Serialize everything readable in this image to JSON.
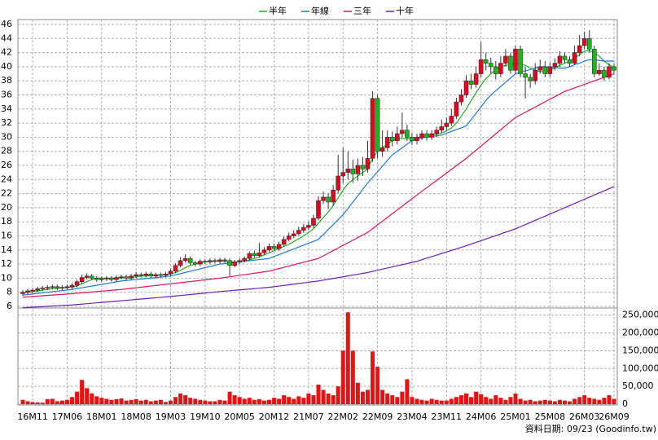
{
  "chart_data": {
    "type": "candlestick",
    "categories": [
      null,
      null,
      "16M11",
      null,
      null,
      null,
      null,
      null,
      null,
      "17M06",
      null,
      null,
      null,
      null,
      null,
      null,
      "18M01",
      null,
      null,
      null,
      null,
      null,
      null,
      "18M08",
      null,
      null,
      null,
      null,
      null,
      null,
      "19M03",
      null,
      null,
      null,
      null,
      null,
      null,
      "19M10",
      null,
      null,
      null,
      null,
      null,
      null,
      "20M05",
      null,
      null,
      null,
      null,
      null,
      null,
      "20M12",
      null,
      null,
      null,
      null,
      null,
      null,
      "21M07",
      null,
      null,
      null,
      null,
      null,
      null,
      "22M02",
      null,
      null,
      null,
      null,
      null,
      null,
      "22M09",
      null,
      null,
      null,
      null,
      null,
      null,
      "23M04",
      null,
      null,
      null,
      null,
      null,
      null,
      "23M11",
      null,
      null,
      null,
      null,
      null,
      null,
      "24M06",
      null,
      null,
      null,
      null,
      null,
      null,
      "25M01",
      null,
      null,
      null,
      null,
      null,
      null,
      "25M08",
      null,
      null,
      null,
      null,
      null,
      null,
      "26M03",
      null,
      null,
      null,
      null,
      null,
      "26M09"
    ],
    "open": [
      7.8,
      8.0,
      8.2,
      8.3,
      8.5,
      8.6,
      8.7,
      8.8,
      8.6,
      8.7,
      8.8,
      9.0,
      9.5,
      10.1,
      10.3,
      10.0,
      9.8,
      9.9,
      10.0,
      9.8,
      10.1,
      10.2,
      10.0,
      10.3,
      10.5,
      10.4,
      10.6,
      10.3,
      10.5,
      10.4,
      10.6,
      11.0,
      11.8,
      12.5,
      12.8,
      12.2,
      12.0,
      12.4,
      12.3,
      12.5,
      12.4,
      12.6,
      12.5,
      11.8,
      12.3,
      12.5,
      12.8,
      13.5,
      13.2,
      13.6,
      14.0,
      14.5,
      14.2,
      14.8,
      15.5,
      16.0,
      16.3,
      16.8,
      17.2,
      17.5,
      18.5,
      21.0,
      21.5,
      20.8,
      22.5,
      24.5,
      25.0,
      25.5,
      24.8,
      26.0,
      25.5,
      27.0,
      35.5,
      28.0,
      28.5,
      30.0,
      29.5,
      30.5,
      31.0,
      30.0,
      29.5,
      30.0,
      30.5,
      30.0,
      30.5,
      31.0,
      31.5,
      32.0,
      33.0,
      35.0,
      36.0,
      38.0,
      37.5,
      39.0,
      41.0,
      40.5,
      40.0,
      39.0,
      40.5,
      41.5,
      39.5,
      42.5,
      39.0,
      38.5,
      38.0,
      39.5,
      40.0,
      39.0,
      40.0,
      40.5,
      41.5,
      41.0,
      40.5,
      42.0,
      43.0,
      44.0,
      42.5,
      39.0,
      39.5,
      38.5,
      40.0
    ],
    "high": [
      8.3,
      8.5,
      8.6,
      8.8,
      8.9,
      9.0,
      9.1,
      9.1,
      9.0,
      9.1,
      9.3,
      9.8,
      10.5,
      10.7,
      10.6,
      10.3,
      10.2,
      10.3,
      10.3,
      10.4,
      10.5,
      10.5,
      10.6,
      10.9,
      10.8,
      10.9,
      10.9,
      10.8,
      10.8,
      10.9,
      11.3,
      12.1,
      13.0,
      13.4,
      13.1,
      12.5,
      12.7,
      12.7,
      12.8,
      12.8,
      12.9,
      12.9,
      12.8,
      12.6,
      12.8,
      13.1,
      13.8,
      13.9,
      15.0,
      14.4,
      14.9,
      14.9,
      15.2,
      15.9,
      16.5,
      16.8,
      17.3,
      17.7,
      18.0,
      19.0,
      21.6,
      22.3,
      22.0,
      23.2,
      27.5,
      28.5,
      28.0,
      26.8,
      27.0,
      27.2,
      29.5,
      36.5,
      36.0,
      31.0,
      31.0,
      30.8,
      31.5,
      33.5,
      31.8,
      30.6,
      30.5,
      31.0,
      31.0,
      31.0,
      31.5,
      32.5,
      32.8,
      34.0,
      35.6,
      36.8,
      38.8,
      39.0,
      40.0,
      43.5,
      42.0,
      41.3,
      40.8,
      41.5,
      42.5,
      42.0,
      43.0,
      43.0,
      40.0,
      39.0,
      40.5,
      41.0,
      40.8,
      40.6,
      41.2,
      42.2,
      42.0,
      41.5,
      43.0,
      44.5,
      45.0,
      45.2,
      43.0,
      40.5,
      40.0,
      40.5,
      40.5
    ],
    "low": [
      7.5,
      7.7,
      7.9,
      8.0,
      8.2,
      8.3,
      8.4,
      8.3,
      8.3,
      8.4,
      8.5,
      8.7,
      9.2,
      9.8,
      9.7,
      9.5,
      9.5,
      9.6,
      9.5,
      9.5,
      9.8,
      9.7,
      9.7,
      10.0,
      10.1,
      10.1,
      10.0,
      10.0,
      10.1,
      10.1,
      10.3,
      10.7,
      11.5,
      12.2,
      11.9,
      11.7,
      11.7,
      12.0,
      12.0,
      12.1,
      12.1,
      12.2,
      10.3,
      11.5,
      12.0,
      12.2,
      12.5,
      12.9,
      12.9,
      13.3,
      13.7,
      13.9,
      13.9,
      14.5,
      15.2,
      15.7,
      16.0,
      16.4,
      16.8,
      17.1,
      18.2,
      20.5,
      19.8,
      20.3,
      22.0,
      23.5,
      24.0,
      23.5,
      23.8,
      24.5,
      25.0,
      26.5,
      27.0,
      27.2,
      28.0,
      28.7,
      29.0,
      30.0,
      29.5,
      28.9,
      29.0,
      29.6,
      29.5,
      29.6,
      30.0,
      30.6,
      31.0,
      31.6,
      32.6,
      34.5,
      35.6,
      36.8,
      37.0,
      38.5,
      39.5,
      39.0,
      38.2,
      38.5,
      40.0,
      39.0,
      39.0,
      38.5,
      35.5,
      37.0,
      37.5,
      39.0,
      38.5,
      38.6,
      39.5,
      40.0,
      40.5,
      40.0,
      40.2,
      41.5,
      42.5,
      42.0,
      38.5,
      38.7,
      38.0,
      38.2,
      39.0
    ],
    "close": [
      8.0,
      8.2,
      8.3,
      8.5,
      8.6,
      8.7,
      8.8,
      8.6,
      8.7,
      8.8,
      9.0,
      9.5,
      10.1,
      10.3,
      10.0,
      9.8,
      9.9,
      10.0,
      9.8,
      10.1,
      10.2,
      10.0,
      10.3,
      10.5,
      10.4,
      10.6,
      10.3,
      10.5,
      10.4,
      10.6,
      11.0,
      11.8,
      12.5,
      12.8,
      12.2,
      12.0,
      12.4,
      12.3,
      12.5,
      12.4,
      12.6,
      12.5,
      11.8,
      12.3,
      12.5,
      12.8,
      13.5,
      13.2,
      13.6,
      14.0,
      14.5,
      14.2,
      14.8,
      15.5,
      16.0,
      16.3,
      16.8,
      17.2,
      17.5,
      18.5,
      21.0,
      21.5,
      20.8,
      22.5,
      24.5,
      25.0,
      25.5,
      24.8,
      26.0,
      25.5,
      27.0,
      35.5,
      28.0,
      28.5,
      30.0,
      29.5,
      30.5,
      31.0,
      30.0,
      29.5,
      30.0,
      30.5,
      30.0,
      30.5,
      31.0,
      31.5,
      32.0,
      33.0,
      35.0,
      36.0,
      38.0,
      37.5,
      39.0,
      41.0,
      40.5,
      40.0,
      39.0,
      40.5,
      41.5,
      39.5,
      42.5,
      39.0,
      38.5,
      38.0,
      39.5,
      40.0,
      39.0,
      40.0,
      40.5,
      41.5,
      41.0,
      40.5,
      42.0,
      43.0,
      44.0,
      42.5,
      39.0,
      39.5,
      38.5,
      40.0,
      39.5
    ],
    "up_color": "#e8001c",
    "down_color": "#18b818",
    "series": [
      {
        "name": "半年",
        "color": "#22aa22",
        "values": [
          7.9,
          8.0,
          8.1,
          8.2,
          8.3,
          8.4,
          8.5,
          8.55,
          8.6,
          8.65,
          8.7,
          8.9,
          9.2,
          9.5,
          9.8,
          10.0,
          10.0,
          10.0,
          10.0,
          10.0,
          10.0,
          10.1,
          10.1,
          10.2,
          10.3,
          10.3,
          10.4,
          10.4,
          10.5,
          10.5,
          10.6,
          10.8,
          11.1,
          11.5,
          11.8,
          12.0,
          12.2,
          12.3,
          12.4,
          12.4,
          12.4,
          12.4,
          12.3,
          12.3,
          12.3,
          12.4,
          12.6,
          12.8,
          13.0,
          13.3,
          13.6,
          13.9,
          14.2,
          14.5,
          14.8,
          15.2,
          15.6,
          16.0,
          16.5,
          17.0,
          17.8,
          18.6,
          19.4,
          20.3,
          21.4,
          22.5,
          23.4,
          24.0,
          24.5,
          25.0,
          25.5,
          27.0,
          28.0,
          28.5,
          29.0,
          29.5,
          29.8,
          29.8,
          29.8,
          29.8,
          29.9,
          30.0,
          30.1,
          30.3,
          30.4,
          30.6,
          30.9,
          31.3,
          32.0,
          33.0,
          34.0,
          35.2,
          36.3,
          37.4,
          38.3,
          39.0,
          39.6,
          40.0,
          40.2,
          40.3,
          40.5,
          40.4,
          40.2,
          39.8,
          39.5,
          39.3,
          39.3,
          39.5,
          39.8,
          40.2,
          40.5,
          40.8,
          41.2,
          41.7,
          42.2,
          42.3,
          42.0,
          41.5,
          40.8,
          40.3,
          39.9
        ]
      },
      {
        "name": "年線",
        "color": "#1e78dc",
        "values": [
          7.6,
          7.68,
          7.76,
          7.84,
          7.92,
          8.0,
          8.08,
          8.16,
          8.24,
          8.32,
          8.4,
          8.52,
          8.64,
          8.76,
          8.88,
          9.0,
          9.12,
          9.24,
          9.36,
          9.48,
          9.6,
          9.67,
          9.74,
          9.81,
          9.88,
          9.95,
          10.02,
          10.09,
          10.16,
          10.23,
          10.3,
          10.47,
          10.64,
          10.81,
          10.98,
          11.15,
          11.32,
          11.49,
          11.66,
          11.83,
          12.0,
          12.08,
          12.16,
          12.24,
          12.32,
          12.4,
          12.48,
          12.56,
          12.64,
          12.72,
          12.8,
          13.07,
          13.34,
          13.61,
          13.88,
          14.15,
          14.42,
          14.69,
          14.96,
          15.23,
          15.5,
          16.2,
          16.9,
          17.6,
          18.3,
          19.0,
          19.9,
          20.8,
          21.7,
          22.6,
          23.5,
          24.3,
          25.1,
          25.9,
          26.7,
          27.5,
          28.0,
          28.5,
          29.0,
          29.5,
          29.8,
          29.9,
          30.0,
          30.1,
          30.2,
          30.3,
          30.56,
          30.82,
          31.08,
          31.34,
          31.6,
          32.5,
          33.4,
          34.3,
          35.2,
          36.0,
          36.6,
          37.2,
          37.8,
          38.4,
          39.0,
          39.2,
          39.4,
          39.6,
          39.8,
          40.0,
          40.0,
          39.9,
          39.9,
          39.8,
          39.8,
          40.0,
          40.3,
          40.5,
          40.8,
          41.0,
          41.0,
          40.9,
          40.8,
          40.8,
          40.8
        ]
      },
      {
        "name": "三年",
        "color": "#e0105a",
        "values": [
          7.3,
          7.35,
          7.4,
          7.45,
          7.5,
          7.55,
          7.6,
          7.65,
          7.7,
          7.75,
          7.8,
          7.86,
          7.92,
          7.98,
          8.04,
          8.1,
          8.16,
          8.22,
          8.28,
          8.34,
          8.4,
          8.48,
          8.56,
          8.64,
          8.72,
          8.8,
          8.88,
          8.96,
          9.04,
          9.12,
          9.2,
          9.28,
          9.36,
          9.44,
          9.52,
          9.6,
          9.68,
          9.76,
          9.84,
          9.92,
          10.0,
          10.1,
          10.2,
          10.3,
          10.4,
          10.5,
          10.6,
          10.7,
          10.8,
          10.9,
          11.0,
          11.18,
          11.36,
          11.54,
          11.72,
          11.9,
          12.08,
          12.26,
          12.44,
          12.62,
          12.8,
          13.17,
          13.54,
          13.91,
          14.28,
          14.65,
          15.02,
          15.39,
          15.76,
          16.13,
          16.5,
          17.03,
          17.56,
          18.09,
          18.62,
          19.15,
          19.68,
          20.21,
          20.74,
          21.27,
          21.8,
          22.32,
          22.84,
          23.36,
          23.88,
          24.4,
          24.92,
          25.44,
          25.96,
          26.48,
          27.0,
          27.58,
          28.16,
          28.74,
          29.32,
          29.9,
          30.48,
          31.06,
          31.64,
          32.22,
          32.8,
          33.17,
          33.54,
          33.91,
          34.28,
          34.65,
          35.02,
          35.39,
          35.76,
          36.13,
          36.5,
          36.75,
          37.0,
          37.25,
          37.5,
          37.75,
          38.0,
          38.25,
          38.5,
          38.75,
          39.0
        ]
      },
      {
        "name": "十年",
        "color": "#6a1fb5",
        "values": [
          5.8,
          5.84,
          5.88,
          5.92,
          5.96,
          6.0,
          6.04,
          6.08,
          6.12,
          6.16,
          6.2,
          6.26,
          6.32,
          6.38,
          6.44,
          6.5,
          6.56,
          6.62,
          6.68,
          6.74,
          6.8,
          6.86,
          6.92,
          6.98,
          7.04,
          7.1,
          7.16,
          7.22,
          7.28,
          7.34,
          7.4,
          7.47,
          7.54,
          7.61,
          7.68,
          7.75,
          7.82,
          7.89,
          7.96,
          8.03,
          8.1,
          8.16,
          8.22,
          8.28,
          8.34,
          8.4,
          8.46,
          8.52,
          8.58,
          8.64,
          8.7,
          8.79,
          8.88,
          8.97,
          9.06,
          9.15,
          9.24,
          9.33,
          9.42,
          9.51,
          9.6,
          9.72,
          9.84,
          9.96,
          10.08,
          10.2,
          10.32,
          10.44,
          10.56,
          10.68,
          10.8,
          10.96,
          11.12,
          11.28,
          11.44,
          11.6,
          11.76,
          11.92,
          12.08,
          12.24,
          12.4,
          12.62,
          12.84,
          13.06,
          13.28,
          13.5,
          13.72,
          13.94,
          14.16,
          14.38,
          14.6,
          14.84,
          15.08,
          15.32,
          15.56,
          15.8,
          16.04,
          16.28,
          16.52,
          16.76,
          17.0,
          17.3,
          17.6,
          17.9,
          18.2,
          18.5,
          18.8,
          19.1,
          19.4,
          19.7,
          20.0,
          20.3,
          20.6,
          20.9,
          21.2,
          21.5,
          21.8,
          22.1,
          22.4,
          22.7,
          23.0
        ]
      }
    ],
    "volume": [
      12000,
      8000,
      6000,
      5000,
      4000,
      14000,
      15000,
      8000,
      10000,
      12000,
      20000,
      35000,
      68000,
      45000,
      30000,
      22000,
      18000,
      15000,
      12000,
      14000,
      16000,
      10000,
      12000,
      14000,
      10000,
      12000,
      8000,
      10000,
      12000,
      6000,
      10000,
      20000,
      30000,
      25000,
      18000,
      15000,
      12000,
      10000,
      8000,
      8000,
      12000,
      10000,
      35000,
      25000,
      20000,
      15000,
      18000,
      12000,
      14000,
      10000,
      12000,
      18000,
      15000,
      25000,
      20000,
      15000,
      22000,
      18000,
      30000,
      25000,
      55000,
      40000,
      30000,
      25000,
      50000,
      150000,
      258000,
      150000,
      60000,
      35000,
      40000,
      148000,
      105000,
      40000,
      30000,
      25000,
      20000,
      35000,
      70000,
      20000,
      15000,
      12000,
      10000,
      15000,
      12000,
      10000,
      10000,
      15000,
      20000,
      25000,
      30000,
      20000,
      35000,
      28000,
      20000,
      15000,
      25000,
      18000,
      12000,
      20000,
      30000,
      15000,
      10000,
      12000,
      8000,
      10000,
      12000,
      10000,
      8000,
      12000,
      10000,
      8000,
      15000,
      20000,
      25000,
      18000,
      15000,
      12000,
      18000,
      25000,
      15000
    ],
    "volume_color": "#ee1010",
    "ylim": [
      6,
      46
    ],
    "yticks": [
      6,
      8,
      10,
      12,
      14,
      16,
      18,
      20,
      22,
      24,
      26,
      28,
      30,
      32,
      34,
      36,
      38,
      40,
      42,
      44,
      46
    ],
    "volume_ylim": [
      0,
      270000
    ],
    "volume_yticks": [
      0,
      {
        "value": 50000,
        "label": "50,000"
      },
      {
        "value": 100000,
        "label": "100,000"
      },
      {
        "value": 150000,
        "label": "150,000"
      },
      {
        "value": 200000,
        "label": "200,000"
      },
      {
        "value": 250000,
        "label": "250,000"
      }
    ],
    "grid": true,
    "footer": "資料日期: 09/23 (Goodinfo.tw)"
  }
}
